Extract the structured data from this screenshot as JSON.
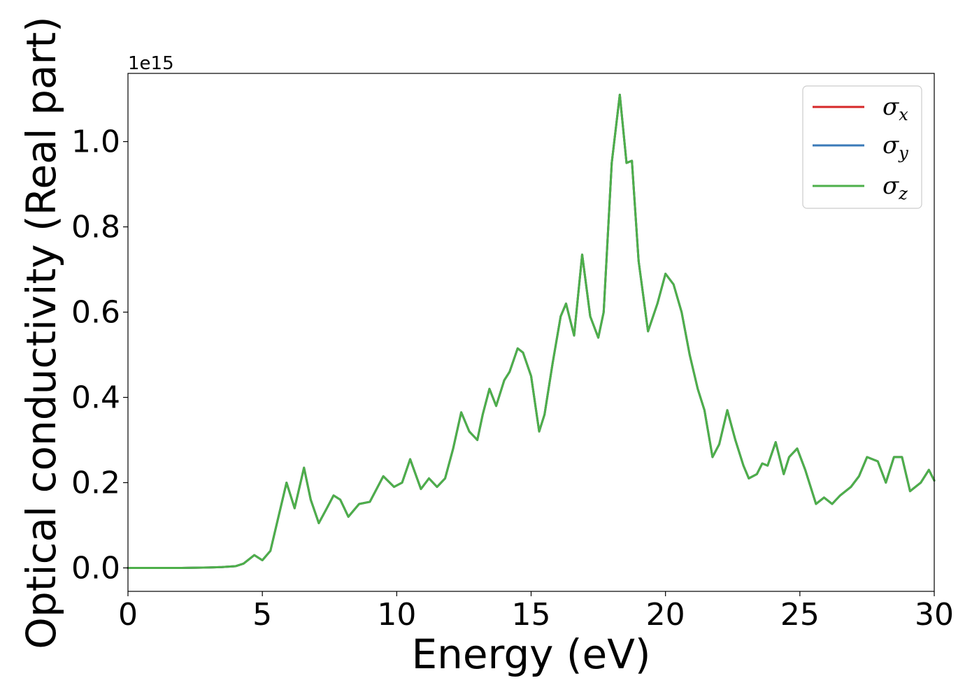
{
  "chart_data": {
    "type": "line",
    "title": "",
    "xlabel": "Energy (eV)",
    "ylabel": "Optical conductivity (Real part)",
    "y_offset_label": "1e15",
    "xlim": [
      0,
      30
    ],
    "ylim": [
      -0.055,
      1.16
    ],
    "xticks": [
      0,
      5,
      10,
      15,
      20,
      25,
      30
    ],
    "yticks": [
      0.0,
      0.2,
      0.4,
      0.6,
      0.8,
      1.0
    ],
    "xtick_labels": [
      "0",
      "5",
      "10",
      "15",
      "20",
      "25",
      "30"
    ],
    "ytick_labels": [
      "0.0",
      "0.2",
      "0.4",
      "0.6",
      "0.8",
      "1.0"
    ],
    "grid": false,
    "legend_position": "top-right",
    "series": [
      {
        "name": "σx",
        "symbol": "σ",
        "subscript": "x",
        "color": "#d62728",
        "x": [
          0,
          1,
          2,
          3,
          3.5,
          4.0,
          4.3,
          4.7,
          5.0,
          5.3,
          5.6,
          5.9,
          6.2,
          6.55,
          6.8,
          7.1,
          7.4,
          7.65,
          7.9,
          8.2,
          8.6,
          9.0,
          9.5,
          9.9,
          10.2,
          10.5,
          10.9,
          11.2,
          11.5,
          11.8,
          12.1,
          12.4,
          12.7,
          13.0,
          13.2,
          13.45,
          13.7,
          14.0,
          14.2,
          14.5,
          14.7,
          15.0,
          15.3,
          15.5,
          15.8,
          16.1,
          16.3,
          16.6,
          16.9,
          17.2,
          17.5,
          17.7,
          18.0,
          18.3,
          18.55,
          18.75,
          19.0,
          19.35,
          19.7,
          20.0,
          20.3,
          20.6,
          20.9,
          21.2,
          21.45,
          21.75,
          22.0,
          22.3,
          22.6,
          22.9,
          23.1,
          23.4,
          23.6,
          23.8,
          24.1,
          24.4,
          24.6,
          24.9,
          25.2,
          25.6,
          25.9,
          26.2,
          26.5,
          26.9,
          27.2,
          27.5,
          27.9,
          28.2,
          28.5,
          28.8,
          29.1,
          29.5,
          29.8,
          30.0
        ],
        "y": [
          0.0,
          0.0,
          0.0,
          0.001,
          0.002,
          0.004,
          0.01,
          0.03,
          0.018,
          0.04,
          0.12,
          0.2,
          0.14,
          0.235,
          0.16,
          0.105,
          0.14,
          0.17,
          0.16,
          0.12,
          0.15,
          0.155,
          0.215,
          0.19,
          0.2,
          0.255,
          0.185,
          0.21,
          0.19,
          0.21,
          0.28,
          0.365,
          0.32,
          0.3,
          0.36,
          0.42,
          0.38,
          0.44,
          0.46,
          0.515,
          0.505,
          0.45,
          0.32,
          0.36,
          0.48,
          0.59,
          0.62,
          0.545,
          0.735,
          0.59,
          0.54,
          0.6,
          0.95,
          1.11,
          0.95,
          0.955,
          0.72,
          0.555,
          0.62,
          0.69,
          0.665,
          0.6,
          0.5,
          0.42,
          0.37,
          0.26,
          0.29,
          0.37,
          0.3,
          0.24,
          0.21,
          0.22,
          0.245,
          0.24,
          0.295,
          0.22,
          0.26,
          0.28,
          0.23,
          0.15,
          0.165,
          0.15,
          0.17,
          0.19,
          0.215,
          0.26,
          0.25,
          0.2,
          0.26,
          0.26,
          0.18,
          0.2,
          0.23,
          0.205
        ]
      },
      {
        "name": "σy",
        "symbol": "σ",
        "subscript": "y",
        "color": "#3a7ab8",
        "x": [
          0,
          1,
          2,
          3,
          3.5,
          4.0,
          4.3,
          4.7,
          5.0,
          5.3,
          5.6,
          5.9,
          6.2,
          6.55,
          6.8,
          7.1,
          7.4,
          7.65,
          7.9,
          8.2,
          8.6,
          9.0,
          9.5,
          9.9,
          10.2,
          10.5,
          10.9,
          11.2,
          11.5,
          11.8,
          12.1,
          12.4,
          12.7,
          13.0,
          13.2,
          13.45,
          13.7,
          14.0,
          14.2,
          14.5,
          14.7,
          15.0,
          15.3,
          15.5,
          15.8,
          16.1,
          16.3,
          16.6,
          16.9,
          17.2,
          17.5,
          17.7,
          18.0,
          18.3,
          18.55,
          18.75,
          19.0,
          19.35,
          19.7,
          20.0,
          20.3,
          20.6,
          20.9,
          21.2,
          21.45,
          21.75,
          22.0,
          22.3,
          22.6,
          22.9,
          23.1,
          23.4,
          23.6,
          23.8,
          24.1,
          24.4,
          24.6,
          24.9,
          25.2,
          25.6,
          25.9,
          26.2,
          26.5,
          26.9,
          27.2,
          27.5,
          27.9,
          28.2,
          28.5,
          28.8,
          29.1,
          29.5,
          29.8,
          30.0
        ],
        "y": [
          0.0,
          0.0,
          0.0,
          0.001,
          0.002,
          0.004,
          0.01,
          0.03,
          0.018,
          0.04,
          0.12,
          0.2,
          0.14,
          0.235,
          0.16,
          0.105,
          0.14,
          0.17,
          0.16,
          0.12,
          0.15,
          0.155,
          0.215,
          0.19,
          0.2,
          0.255,
          0.185,
          0.21,
          0.19,
          0.21,
          0.28,
          0.365,
          0.32,
          0.3,
          0.36,
          0.42,
          0.38,
          0.44,
          0.46,
          0.515,
          0.505,
          0.45,
          0.32,
          0.36,
          0.48,
          0.59,
          0.62,
          0.545,
          0.735,
          0.59,
          0.54,
          0.6,
          0.95,
          1.11,
          0.95,
          0.955,
          0.72,
          0.555,
          0.62,
          0.69,
          0.665,
          0.6,
          0.5,
          0.42,
          0.37,
          0.26,
          0.29,
          0.37,
          0.3,
          0.24,
          0.21,
          0.22,
          0.245,
          0.24,
          0.295,
          0.22,
          0.26,
          0.28,
          0.23,
          0.15,
          0.165,
          0.15,
          0.17,
          0.19,
          0.215,
          0.26,
          0.25,
          0.2,
          0.26,
          0.26,
          0.18,
          0.2,
          0.23,
          0.205
        ]
      },
      {
        "name": "σz",
        "symbol": "σ",
        "subscript": "z",
        "color": "#4daf4a",
        "x": [
          0,
          1,
          2,
          3,
          3.5,
          4.0,
          4.3,
          4.7,
          5.0,
          5.3,
          5.6,
          5.9,
          6.2,
          6.55,
          6.8,
          7.1,
          7.4,
          7.65,
          7.9,
          8.2,
          8.6,
          9.0,
          9.5,
          9.9,
          10.2,
          10.5,
          10.9,
          11.2,
          11.5,
          11.8,
          12.1,
          12.4,
          12.7,
          13.0,
          13.2,
          13.45,
          13.7,
          14.0,
          14.2,
          14.5,
          14.7,
          15.0,
          15.3,
          15.5,
          15.8,
          16.1,
          16.3,
          16.6,
          16.9,
          17.2,
          17.5,
          17.7,
          18.0,
          18.3,
          18.55,
          18.75,
          19.0,
          19.35,
          19.7,
          20.0,
          20.3,
          20.6,
          20.9,
          21.2,
          21.45,
          21.75,
          22.0,
          22.3,
          22.6,
          22.9,
          23.1,
          23.4,
          23.6,
          23.8,
          24.1,
          24.4,
          24.6,
          24.9,
          25.2,
          25.6,
          25.9,
          26.2,
          26.5,
          26.9,
          27.2,
          27.5,
          27.9,
          28.2,
          28.5,
          28.8,
          29.1,
          29.5,
          29.8,
          30.0
        ],
        "y": [
          0.0,
          0.0,
          0.0,
          0.001,
          0.002,
          0.004,
          0.01,
          0.03,
          0.018,
          0.04,
          0.12,
          0.2,
          0.14,
          0.235,
          0.16,
          0.105,
          0.14,
          0.17,
          0.16,
          0.12,
          0.15,
          0.155,
          0.215,
          0.19,
          0.2,
          0.255,
          0.185,
          0.21,
          0.19,
          0.21,
          0.28,
          0.365,
          0.32,
          0.3,
          0.36,
          0.42,
          0.38,
          0.44,
          0.46,
          0.515,
          0.505,
          0.45,
          0.32,
          0.36,
          0.48,
          0.59,
          0.62,
          0.545,
          0.735,
          0.59,
          0.54,
          0.6,
          0.95,
          1.11,
          0.95,
          0.955,
          0.72,
          0.555,
          0.62,
          0.69,
          0.665,
          0.6,
          0.5,
          0.42,
          0.37,
          0.26,
          0.29,
          0.37,
          0.3,
          0.24,
          0.21,
          0.22,
          0.245,
          0.24,
          0.295,
          0.22,
          0.26,
          0.28,
          0.23,
          0.15,
          0.165,
          0.15,
          0.17,
          0.19,
          0.215,
          0.26,
          0.25,
          0.2,
          0.26,
          0.26,
          0.18,
          0.2,
          0.23,
          0.205
        ]
      }
    ]
  }
}
